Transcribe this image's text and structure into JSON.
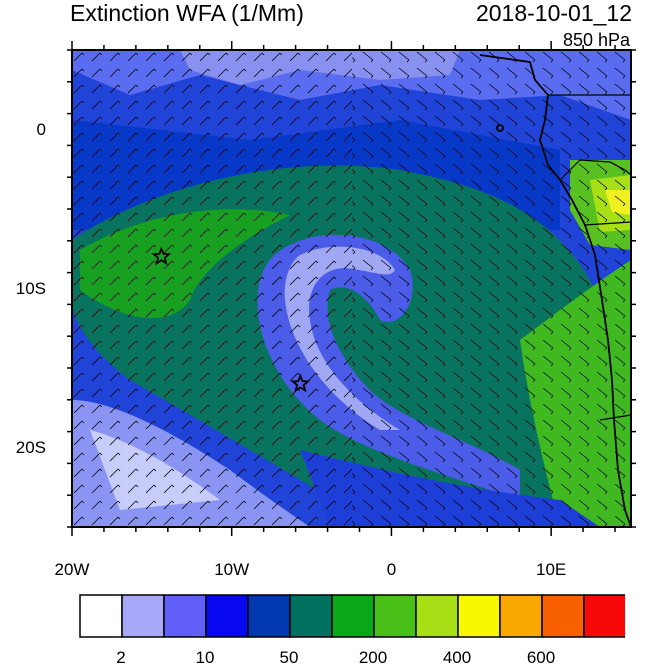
{
  "header": {
    "title": "Extinction WFA (1/Mm)",
    "time": "2018-10-01_12",
    "level": "850 hPa"
  },
  "axes": {
    "lat_ticks": [
      {
        "value": 0,
        "label": "0"
      },
      {
        "value": -10,
        "label": "10S"
      },
      {
        "value": -20,
        "label": "20S"
      }
    ],
    "lon_ticks": [
      {
        "value": -20,
        "label": "20W"
      },
      {
        "value": -10,
        "label": "10W"
      },
      {
        "value": 0,
        "label": "0"
      },
      {
        "value": 10,
        "label": "10E"
      }
    ],
    "lon_range": [
      -20,
      15
    ],
    "lat_range": [
      -25,
      5
    ]
  },
  "markers": [
    {
      "name": "star",
      "lon": -14.4,
      "lat": -8.0
    },
    {
      "name": "star",
      "lon": -5.7,
      "lat": -16.0
    }
  ],
  "colorbar": {
    "colors": [
      "#ffffff",
      "#a8a8f8",
      "#6060f8",
      "#0808f0",
      "#0038b0",
      "#007060",
      "#08a818",
      "#48c018",
      "#a8e018",
      "#f8f800",
      "#f8a800",
      "#f86000",
      "#f80808"
    ],
    "labels": [
      {
        "index": 1,
        "text": "2"
      },
      {
        "index": 3,
        "text": "10"
      },
      {
        "index": 5,
        "text": "50"
      },
      {
        "index": 7,
        "text": "200"
      },
      {
        "index": 9,
        "text": "400"
      },
      {
        "index": 11,
        "text": "600"
      }
    ]
  }
}
